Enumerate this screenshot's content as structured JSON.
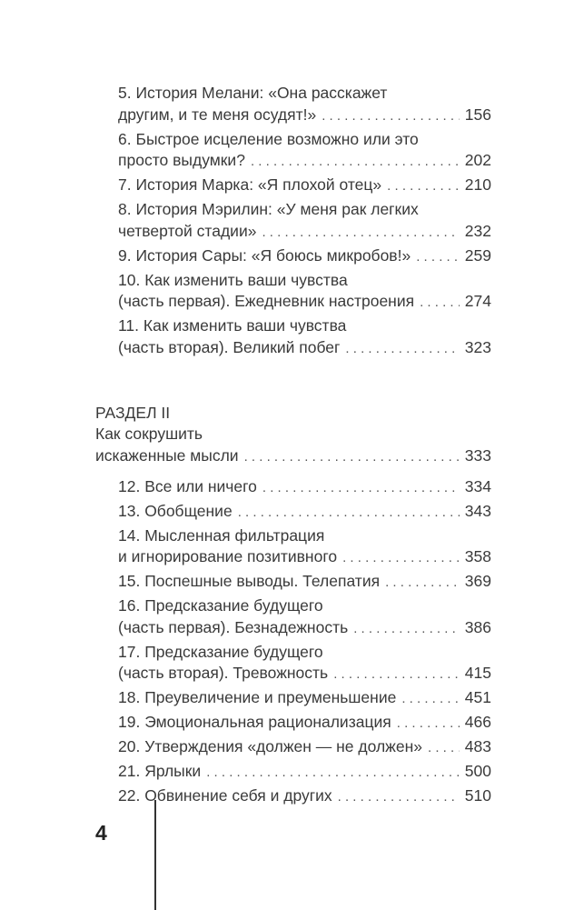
{
  "part1": [
    {
      "lines": [
        "5. История Мелани: «Она расскажет",
        "другим, и те меня осудят!»"
      ],
      "page": "156"
    },
    {
      "lines": [
        "6. Быстрое исцеление возможно или это",
        "просто выдумки?"
      ],
      "page": "202"
    },
    {
      "lines": [
        "7. История Марка: «Я плохой отец»"
      ],
      "page": "210"
    },
    {
      "lines": [
        "8. История Мэрилин: «У меня рак легких",
        "четвертой стадии»"
      ],
      "page": "232"
    },
    {
      "lines": [
        "9. История Сары: «Я боюсь микробов!»"
      ],
      "page": "259"
    },
    {
      "lines": [
        "10. Как изменить ваши чувства",
        "(часть первая). Ежедневник настроения"
      ],
      "page": "274"
    },
    {
      "lines": [
        "11. Как изменить ваши чувства",
        "(часть вторая). Великий побег"
      ],
      "page": "323"
    }
  ],
  "section": {
    "label": "РАЗДЕЛ II",
    "lines": [
      "Как сокрушить",
      "искаженные мысли"
    ],
    "page": "333"
  },
  "part2": [
    {
      "lines": [
        "12. Все или ничего"
      ],
      "page": "334"
    },
    {
      "lines": [
        "13. Обобщение"
      ],
      "page": "343"
    },
    {
      "lines": [
        "14. Мысленная фильтрация",
        "и игнорирование позитивного"
      ],
      "page": "358"
    },
    {
      "lines": [
        "15. Поспешные выводы. Телепатия"
      ],
      "page": "369"
    },
    {
      "lines": [
        "16. Предсказание будущего",
        "(часть первая). Безнадежность"
      ],
      "page": "386"
    },
    {
      "lines": [
        "17. Предсказание будущего",
        "(часть вторая). Тревожность"
      ],
      "page": "415"
    },
    {
      "lines": [
        "18. Преувеличение и преуменьшение"
      ],
      "page": "451"
    },
    {
      "lines": [
        "19. Эмоциональная рационализация"
      ],
      "page": "466"
    },
    {
      "lines": [
        "20. Утверждения «должен — не должен»"
      ],
      "page": "483"
    },
    {
      "lines": [
        "21. Ярлыки"
      ],
      "page": "500"
    },
    {
      "lines": [
        "22. Обвинение себя и других"
      ],
      "page": "510"
    }
  ],
  "footer": {
    "page_number": "4"
  }
}
